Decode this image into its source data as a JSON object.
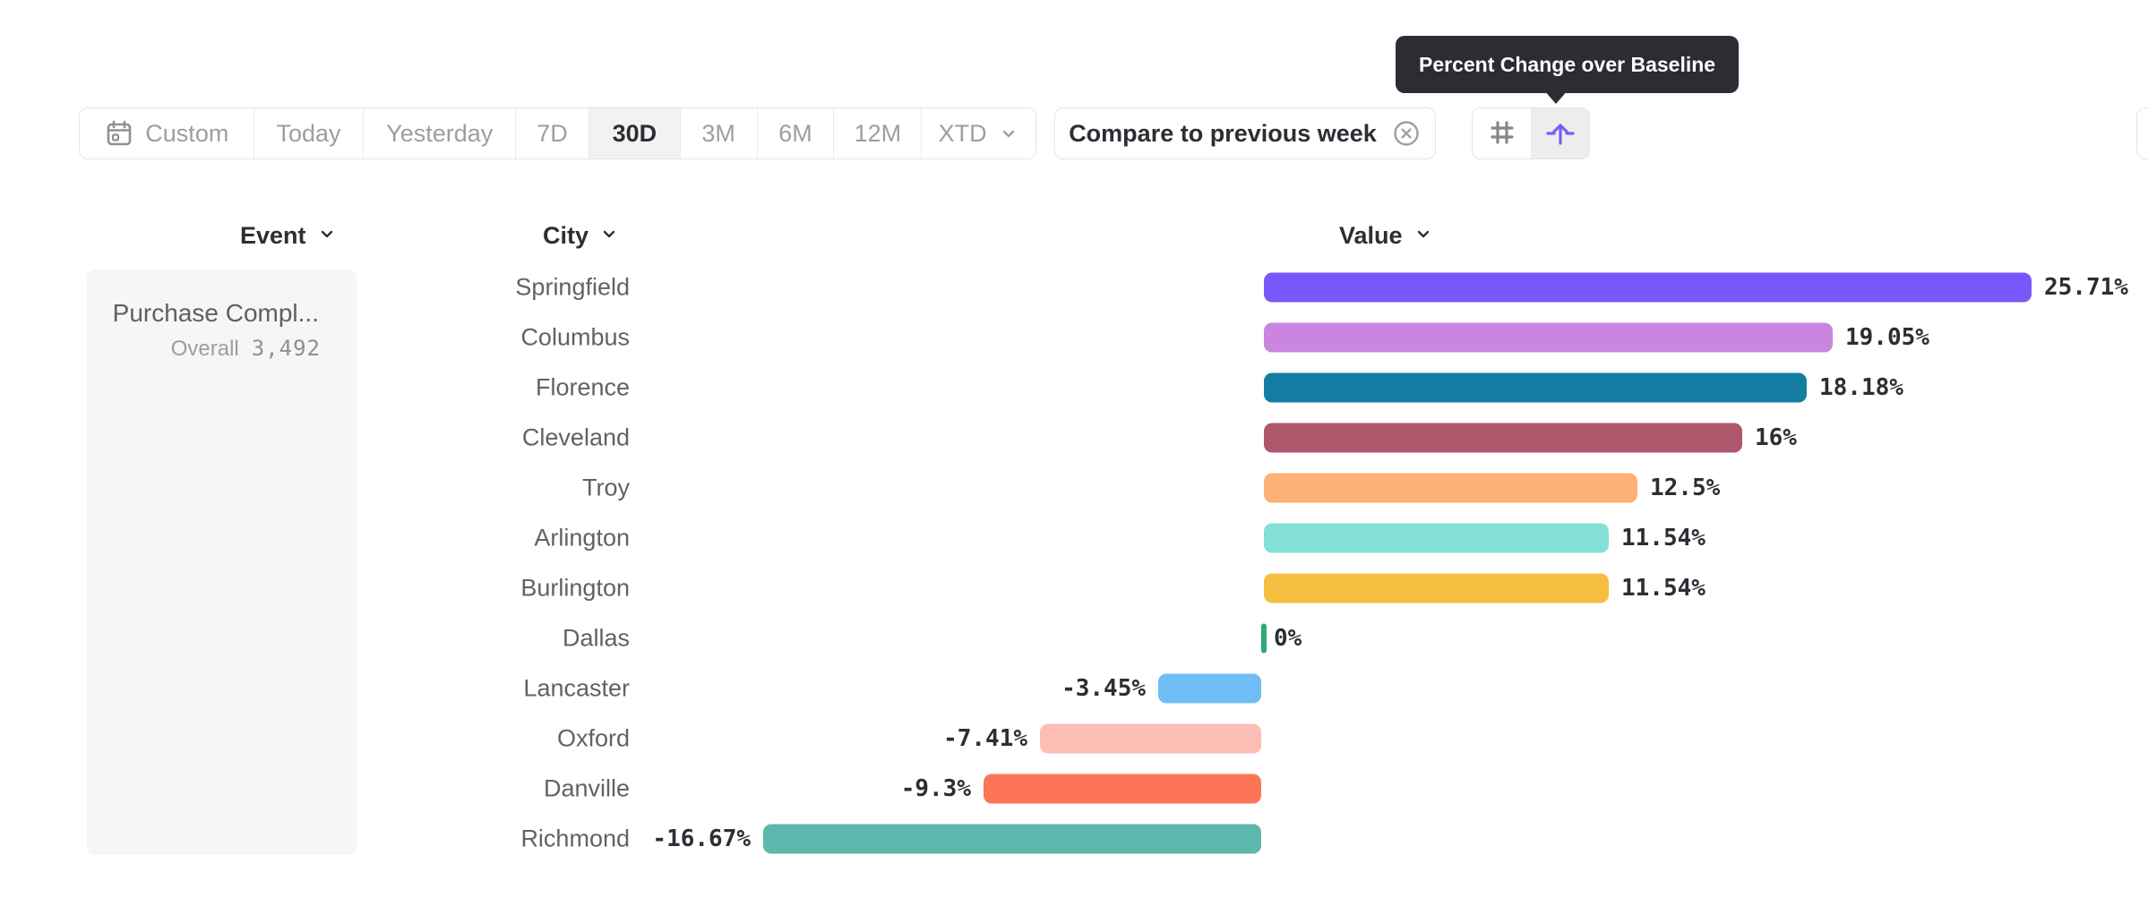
{
  "tooltip": {
    "text": "Percent Change over Baseline",
    "bg_color": "#2b2d33"
  },
  "toolbar": {
    "date_ranges": [
      {
        "label": "Custom",
        "icon": "calendar-icon",
        "selected": false
      },
      {
        "label": "Today",
        "selected": false
      },
      {
        "label": "Yesterday",
        "selected": false
      },
      {
        "label": "7D",
        "selected": false
      },
      {
        "label": "30D",
        "selected": true
      },
      {
        "label": "3M",
        "selected": false
      },
      {
        "label": "6M",
        "selected": false
      },
      {
        "label": "12M",
        "selected": false
      },
      {
        "label": "XTD",
        "chevron": true,
        "selected": false
      }
    ],
    "compare": {
      "label": "Compare to previous week",
      "icon": "x-circle-icon"
    },
    "view_toggle": [
      {
        "icon": "grid-hash-icon",
        "selected": false,
        "color": "#85888d"
      },
      {
        "icon": "baseline-arrow-icon",
        "selected": true,
        "color": "#7a5cf8"
      }
    ]
  },
  "columns": {
    "event": "Event",
    "city": "City",
    "value": "Value"
  },
  "event_panel": {
    "name": "Purchase Compl...",
    "overall_label": "Overall",
    "overall_value": "3,492"
  },
  "chart_data": {
    "type": "bar",
    "orientation": "horizontal",
    "series_name": "Value",
    "group_by": "City",
    "event": "Purchase Compl...",
    "unit": "percent change over baseline",
    "baseline": 0,
    "xlim": [
      -16.67,
      25.71
    ],
    "grid": false,
    "categories": [
      "Springfield",
      "Columbus",
      "Florence",
      "Cleveland",
      "Troy",
      "Arlington",
      "Burlington",
      "Dallas",
      "Lancaster",
      "Oxford",
      "Danville",
      "Richmond"
    ],
    "values": [
      25.71,
      19.05,
      18.18,
      16,
      12.5,
      11.54,
      11.54,
      0,
      -3.45,
      -7.41,
      -9.3,
      -16.67
    ],
    "rows": [
      {
        "city": "Springfield",
        "value": 25.71,
        "label": "25.71%",
        "color": "#7957fb"
      },
      {
        "city": "Columbus",
        "value": 19.05,
        "label": "19.05%",
        "color": "#c985df"
      },
      {
        "city": "Florence",
        "value": 18.18,
        "label": "18.18%",
        "color": "#137ea2"
      },
      {
        "city": "Cleveland",
        "value": 16,
        "label": "16%",
        "color": "#ae566c"
      },
      {
        "city": "Troy",
        "value": 12.5,
        "label": "12.5%",
        "color": "#fdb078"
      },
      {
        "city": "Arlington",
        "value": 11.54,
        "label": "11.54%",
        "color": "#84dfd7"
      },
      {
        "city": "Burlington",
        "value": 11.54,
        "label": "11.54%",
        "color": "#f5bf40"
      },
      {
        "city": "Dallas",
        "value": 0,
        "label": "0%",
        "color": "#2fa973"
      },
      {
        "city": "Lancaster",
        "value": -3.45,
        "label": "-3.45%",
        "color": "#70bdf5"
      },
      {
        "city": "Oxford",
        "value": -7.41,
        "label": "-7.41%",
        "color": "#fcbdb5"
      },
      {
        "city": "Danville",
        "value": -9.3,
        "label": "-9.3%",
        "color": "#fd7557"
      },
      {
        "city": "Richmond",
        "value": -16.67,
        "label": "-16.67%",
        "color": "#5cb7ad"
      }
    ]
  }
}
